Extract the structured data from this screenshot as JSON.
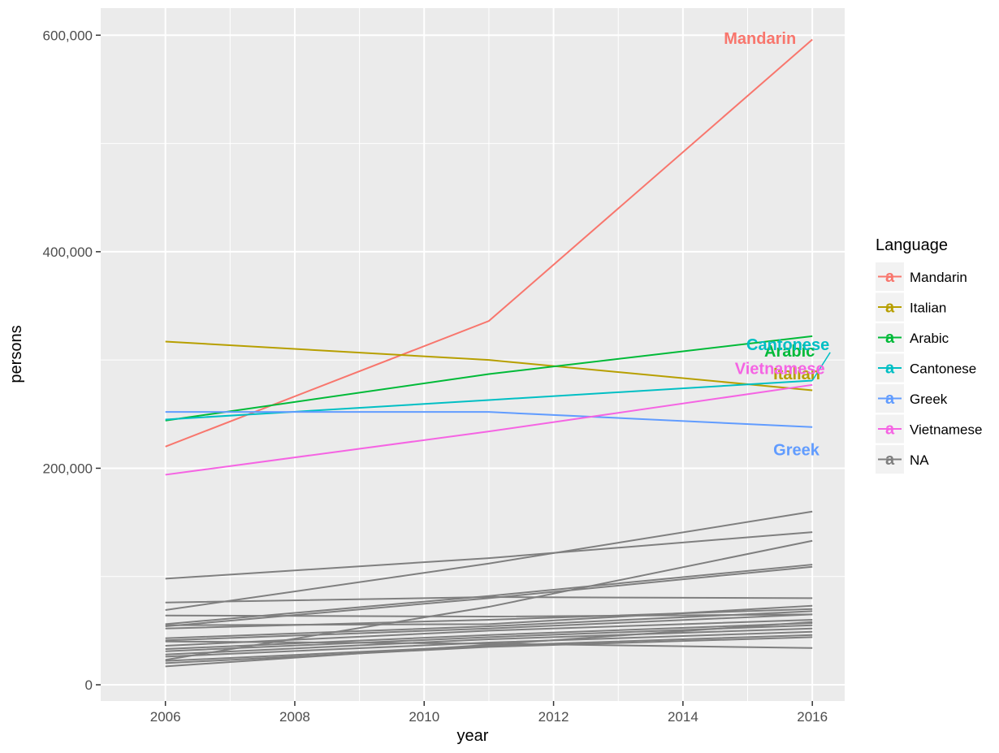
{
  "chart_data": {
    "type": "line",
    "xlabel": "year",
    "ylabel": "persons",
    "xlim": [
      2005.0,
      2016.5
    ],
    "ylim": [
      -15000,
      625000
    ],
    "x_ticks": [
      2006,
      2008,
      2010,
      2012,
      2014,
      2016
    ],
    "y_ticks": [
      0,
      200000,
      400000,
      600000
    ],
    "y_tick_labels": [
      "0",
      "200,000",
      "400,000",
      "600,000"
    ],
    "grid": true,
    "legend": {
      "title": "Language",
      "position": "right",
      "entries": [
        "Mandarin",
        "Italian",
        "Arabic",
        "Cantonese",
        "Greek",
        "Vietnamese",
        "NA"
      ]
    },
    "series": [
      {
        "name": "Mandarin",
        "color": "#F8766D",
        "label": "Mandarin",
        "x": [
          2006,
          2011,
          2016
        ],
        "values": [
          220000,
          336000,
          596000
        ]
      },
      {
        "name": "Italian",
        "color": "#B79F00",
        "label": "Italian",
        "x": [
          2006,
          2011,
          2016
        ],
        "values": [
          317000,
          300000,
          272000
        ]
      },
      {
        "name": "Arabic",
        "color": "#00BA38",
        "label": "Arabic",
        "x": [
          2006,
          2011,
          2016
        ],
        "values": [
          244000,
          287000,
          322000
        ]
      },
      {
        "name": "Cantonese",
        "color": "#00BFC4",
        "label": "Cantonese",
        "x": [
          2006,
          2011,
          2016
        ],
        "values": [
          245000,
          263000,
          281000
        ]
      },
      {
        "name": "Greek",
        "color": "#619CFF",
        "label": "Greek",
        "x": [
          2006,
          2011,
          2016
        ],
        "values": [
          252000,
          252000,
          238000
        ]
      },
      {
        "name": "Vietnamese",
        "color": "#F564E3",
        "label": "Vietnamese",
        "x": [
          2006,
          2011,
          2016
        ],
        "values": [
          194000,
          234000,
          277000
        ]
      },
      {
        "name": "NA",
        "color": "#7F7F7F",
        "x": [
          2006,
          2011,
          2016
        ],
        "values": [
          98000,
          117000,
          141000
        ]
      },
      {
        "name": "NA",
        "color": "#7F7F7F",
        "x": [
          2006,
          2011,
          2016
        ],
        "values": [
          69000,
          112000,
          160000
        ]
      },
      {
        "name": "NA",
        "color": "#7F7F7F",
        "x": [
          2006,
          2011,
          2016
        ],
        "values": [
          23000,
          72000,
          133000
        ]
      },
      {
        "name": "NA",
        "color": "#7F7F7F",
        "x": [
          2006,
          2011,
          2016
        ],
        "values": [
          76000,
          81000,
          80000
        ]
      },
      {
        "name": "NA",
        "color": "#7F7F7F",
        "x": [
          2006,
          2011,
          2016
        ],
        "values": [
          56000,
          82000,
          111000
        ]
      },
      {
        "name": "NA",
        "color": "#7F7F7F",
        "x": [
          2006,
          2011,
          2016
        ],
        "values": [
          54000,
          80000,
          109000
        ]
      },
      {
        "name": "NA",
        "color": "#7F7F7F",
        "x": [
          2006,
          2011,
          2016
        ],
        "values": [
          64000,
          63000,
          65000
        ]
      },
      {
        "name": "NA",
        "color": "#7F7F7F",
        "x": [
          2006,
          2011,
          2016
        ],
        "values": [
          55000,
          56000,
          73000
        ]
      },
      {
        "name": "NA",
        "color": "#7F7F7F",
        "x": [
          2006,
          2011,
          2016
        ],
        "values": [
          52000,
          60000,
          70000
        ]
      },
      {
        "name": "NA",
        "color": "#7F7F7F",
        "x": [
          2006,
          2011,
          2016
        ],
        "values": [
          43000,
          54000,
          68000
        ]
      },
      {
        "name": "NA",
        "color": "#7F7F7F",
        "x": [
          2006,
          2011,
          2016
        ],
        "values": [
          41000,
          52000,
          65000
        ]
      },
      {
        "name": "NA",
        "color": "#7F7F7F",
        "x": [
          2006,
          2011,
          2016
        ],
        "values": [
          36000,
          50000,
          60000
        ]
      },
      {
        "name": "NA",
        "color": "#7F7F7F",
        "x": [
          2006,
          2011,
          2016
        ],
        "values": [
          33000,
          46000,
          57000
        ]
      },
      {
        "name": "NA",
        "color": "#7F7F7F",
        "x": [
          2006,
          2011,
          2016
        ],
        "values": [
          31000,
          44000,
          55000
        ]
      },
      {
        "name": "NA",
        "color": "#7F7F7F",
        "x": [
          2006,
          2011,
          2016
        ],
        "values": [
          28000,
          42000,
          52000
        ]
      },
      {
        "name": "NA",
        "color": "#7F7F7F",
        "x": [
          2006,
          2011,
          2016
        ],
        "values": [
          26000,
          39000,
          49000
        ]
      },
      {
        "name": "NA",
        "color": "#7F7F7F",
        "x": [
          2006,
          2011,
          2016
        ],
        "values": [
          22000,
          36000,
          46000
        ]
      },
      {
        "name": "NA",
        "color": "#7F7F7F",
        "x": [
          2006,
          2011,
          2016
        ],
        "values": [
          20000,
          35000,
          44000
        ]
      },
      {
        "name": "NA",
        "color": "#7F7F7F",
        "x": [
          2006,
          2011,
          2016
        ],
        "values": [
          17000,
          37000,
          58000
        ]
      },
      {
        "name": "NA",
        "color": "#7F7F7F",
        "x": [
          2006,
          2011,
          2016
        ],
        "values": [
          40000,
          38000,
          34000
        ]
      }
    ]
  }
}
